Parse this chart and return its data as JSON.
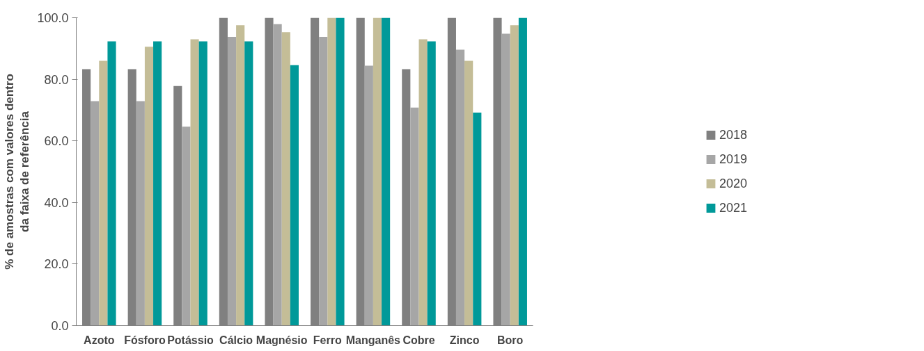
{
  "chart_data": {
    "type": "bar",
    "ylabel": "% de amostras com valores dentro\nda faixa de referência",
    "categories": [
      "Azoto",
      "Fósforo",
      "Potássio",
      "Cálcio",
      "Magnésio",
      "Ferro",
      "Manganês",
      "Cobre",
      "Zinco",
      "Boro"
    ],
    "series": [
      {
        "name": "2018",
        "color": "#808080",
        "values": [
          83.3,
          83.3,
          77.8,
          100,
          100,
          100,
          100,
          83.3,
          100,
          100
        ]
      },
      {
        "name": "2019",
        "color": "#a6a6a6",
        "values": [
          72.9,
          72.9,
          64.6,
          93.8,
          97.9,
          93.8,
          84.4,
          70.8,
          89.6,
          94.8
        ]
      },
      {
        "name": "2020",
        "color": "#c4bd97",
        "values": [
          86.0,
          90.6,
          93.0,
          97.6,
          95.3,
          100,
          100,
          93.0,
          86.0,
          97.6
        ]
      },
      {
        "name": "2021",
        "color": "#009999",
        "values": [
          92.3,
          92.3,
          92.3,
          92.3,
          84.6,
          100,
          100,
          92.3,
          69.2,
          100
        ]
      }
    ],
    "ylim": [
      0,
      100
    ],
    "yticks": [
      {
        "value": 0,
        "label": "0.0"
      },
      {
        "value": 20,
        "label": "20.0"
      },
      {
        "value": 40,
        "label": "40.0"
      },
      {
        "value": 60,
        "label": "60.0"
      },
      {
        "value": 80,
        "label": "80.0"
      },
      {
        "value": 100,
        "label": "100.0"
      }
    ],
    "grid": false,
    "legend": "right"
  }
}
